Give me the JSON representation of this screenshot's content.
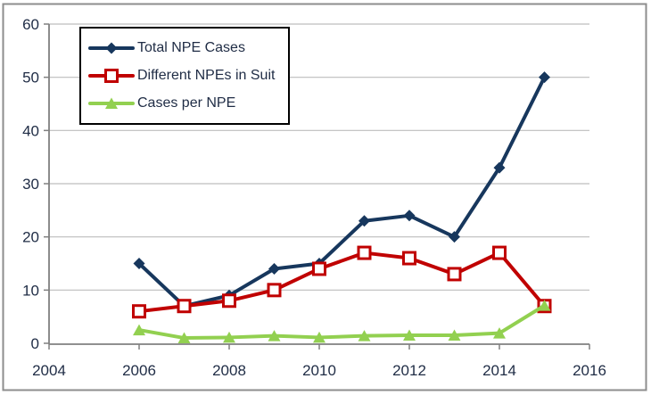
{
  "chart_data": {
    "type": "line",
    "x": [
      2006,
      2007,
      2008,
      2009,
      2010,
      2011,
      2012,
      2013,
      2014,
      2015
    ],
    "series": [
      {
        "name": "Total NPE Cases",
        "color": "#17375D",
        "marker": "diamond",
        "values": [
          15,
          7,
          9,
          14,
          15,
          23,
          24,
          20,
          33,
          50
        ]
      },
      {
        "name": "Different NPEs in Suit",
        "color": "#C00000",
        "marker": "square-open",
        "values": [
          6,
          7,
          8,
          10,
          14,
          17,
          16,
          13,
          17,
          7
        ]
      },
      {
        "name": "Cases per NPE",
        "color": "#92D050",
        "marker": "triangle",
        "values": [
          2.5,
          1.0,
          1.1,
          1.4,
          1.1,
          1.4,
          1.5,
          1.5,
          1.9,
          7.1
        ]
      }
    ],
    "title": "",
    "xlabel": "",
    "ylabel": "",
    "xlim": [
      2004,
      2016
    ],
    "ylim": [
      0,
      60
    ],
    "x_ticks": [
      2004,
      2006,
      2008,
      2010,
      2012,
      2014,
      2016
    ],
    "y_ticks": [
      0,
      10,
      20,
      30,
      40,
      50,
      60
    ],
    "grid": "horizontal-y",
    "legend_position": "top-left"
  },
  "colors": {
    "background": "#FFFFFF",
    "border": "#8E8E8E",
    "gridline": "#BDBDBD",
    "axis_line": "#808080",
    "axis_text": "#1F2C45",
    "legend_border": "#000000",
    "legend_text": "#1F2C45",
    "marker_fill_open": "#FFFFFF"
  }
}
